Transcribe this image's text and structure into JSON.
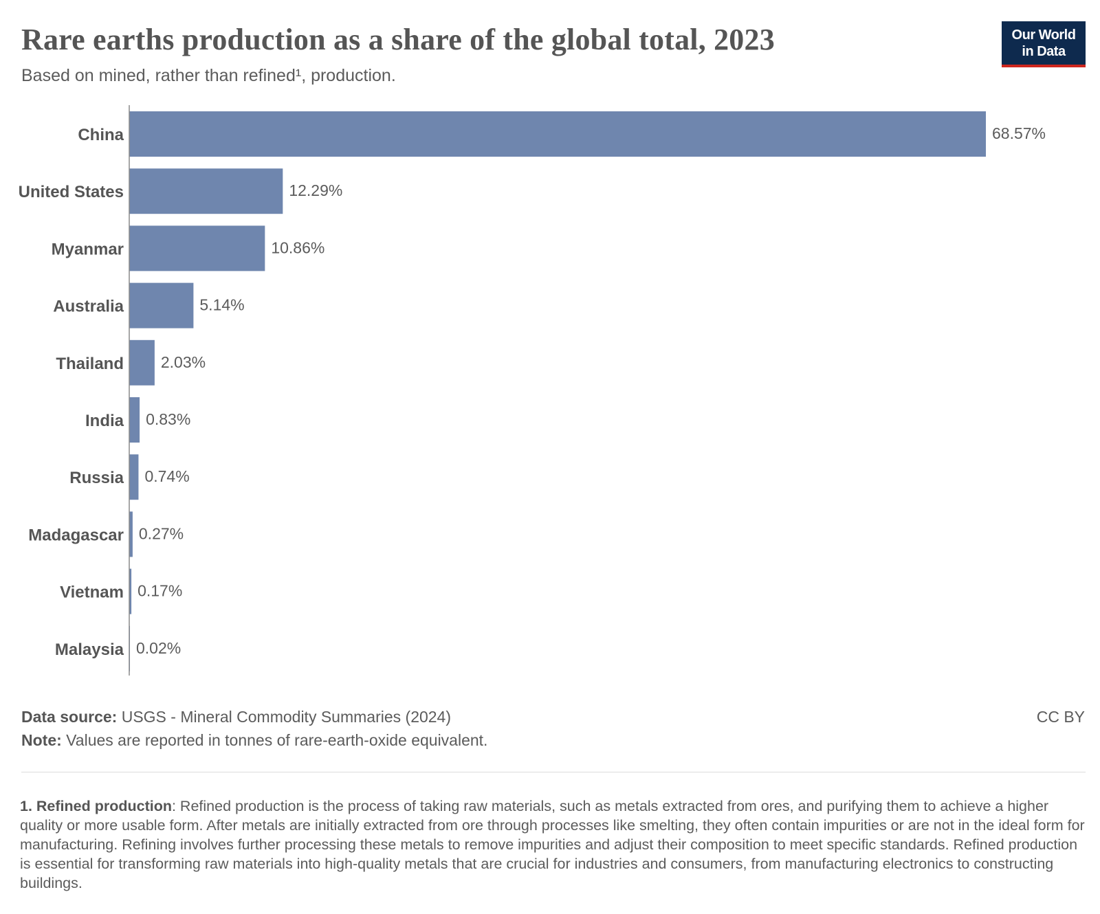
{
  "header": {
    "title": "Rare earths production as a share of the global total, 2023",
    "subtitle": "Based on mined, rather than refined¹, production.",
    "logo_line1": "Our World",
    "logo_line2": "in Data"
  },
  "colors": {
    "bar": "#6f86ae",
    "axis": "#8a8a8a",
    "logo_bg": "#0e2a4e",
    "logo_accent": "#ce261e"
  },
  "chart_data": {
    "type": "bar",
    "orientation": "horizontal",
    "categories": [
      "China",
      "United States",
      "Myanmar",
      "Australia",
      "Thailand",
      "India",
      "Russia",
      "Madagascar",
      "Vietnam",
      "Malaysia"
    ],
    "values": [
      68.57,
      12.29,
      10.86,
      5.14,
      2.03,
      0.83,
      0.74,
      0.27,
      0.17,
      0.02
    ],
    "value_labels": [
      "68.57%",
      "12.29%",
      "10.86%",
      "5.14%",
      "2.03%",
      "0.83%",
      "0.74%",
      "0.27%",
      "0.17%",
      "0.02%"
    ],
    "title": "Rare earths production as a share of the global total, 2023",
    "unit": "%",
    "grid": false,
    "legend": "none"
  },
  "footer": {
    "source_label": "Data source:",
    "source_text": "USGS - Mineral Commodity Summaries (2024)",
    "note_label": "Note:",
    "note_text": "Values are reported in tonnes of rare-earth-oxide equivalent.",
    "license": "CC BY"
  },
  "footnote": {
    "label": "1. Refined production",
    "text": ": Refined production is the process of taking raw materials, such as metals extracted from ores, and purifying them to achieve a higher quality or more usable form. After metals are initially extracted from ore through processes like smelting, they often contain impurities or are not in the ideal form for manufacturing. Refining involves further processing these metals to remove impurities and adjust their composition to meet specific standards. Refined production is essential for transforming raw materials into high-quality metals that are crucial for industries and consumers, from manufacturing electronics to constructing buildings."
  }
}
